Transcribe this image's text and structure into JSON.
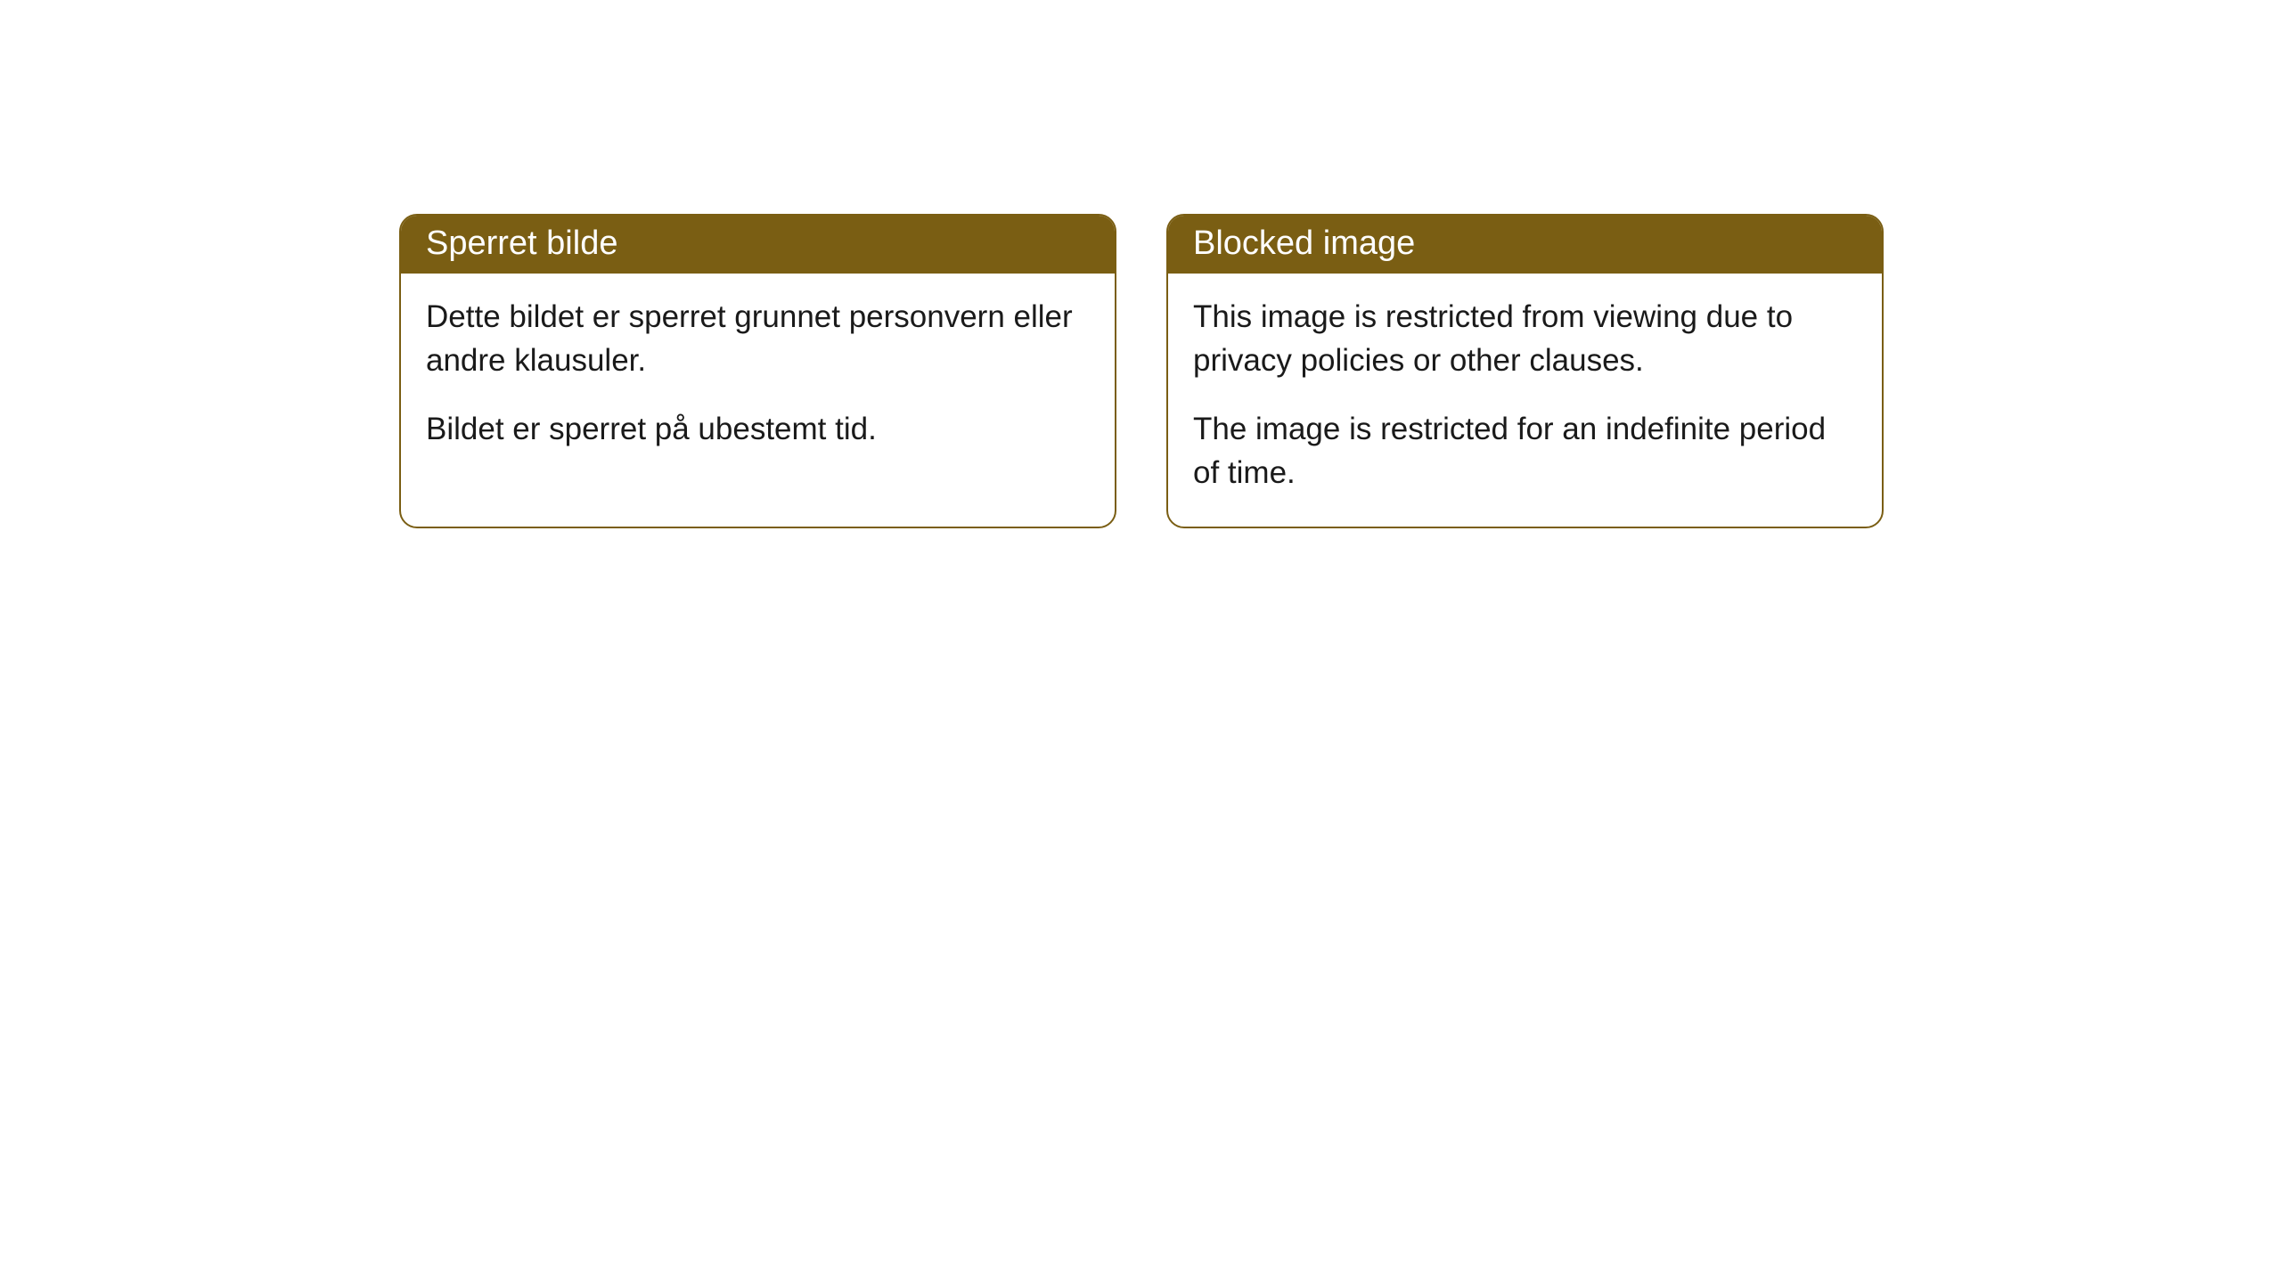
{
  "cards": {
    "left": {
      "title": "Sperret bilde",
      "paragraph1": "Dette bildet er sperret grunnet personvern eller andre klausuler.",
      "paragraph2": "Bildet er sperret på ubestemt tid."
    },
    "right": {
      "title": "Blocked image",
      "paragraph1": "This image is restricted from viewing due to privacy policies or other clauses.",
      "paragraph2": "The image is restricted for an indefinite period of time."
    }
  },
  "styling": {
    "header_background": "#7a5e13",
    "header_text_color": "#ffffff",
    "border_color": "#7a5e13",
    "body_text_color": "#1a1a1a",
    "background_color": "#ffffff",
    "border_radius": 20,
    "title_fontsize": 38,
    "body_fontsize": 35
  }
}
